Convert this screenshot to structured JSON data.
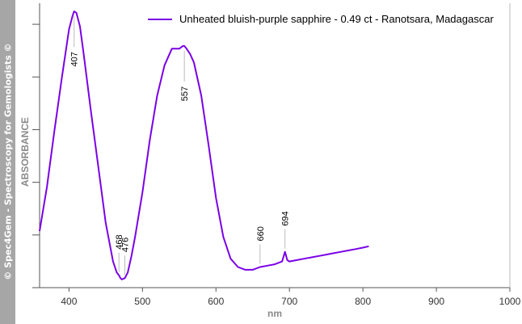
{
  "sidebar": {
    "watermark": "© Spec4Gem - Spectroscopy for Gemologists ©"
  },
  "chart_data": {
    "type": "line",
    "xlabel": "nm",
    "ylabel": "ABSORBANCE",
    "xlim": [
      360,
      1000
    ],
    "xticks": [
      400,
      500,
      600,
      700,
      800,
      900,
      1000
    ],
    "ylim": [
      0,
      1
    ],
    "yticks_count": 6,
    "grid": false,
    "legend": "top-right",
    "series": [
      {
        "name": "Unheated bluish-purple sapphire - 0.49 ct - Ranotsara, Madagascar",
        "color": "#7a00e6",
        "x": [
          360,
          370,
          380,
          390,
          400,
          405,
          407,
          410,
          415,
          420,
          430,
          440,
          450,
          460,
          465,
          468,
          470,
          472,
          476,
          480,
          485,
          490,
          500,
          510,
          520,
          530,
          540,
          550,
          555,
          557,
          560,
          565,
          570,
          580,
          590,
          600,
          610,
          620,
          630,
          640,
          650,
          660,
          670,
          680,
          690,
          694,
          697,
          700,
          710,
          720,
          730,
          740,
          750,
          760,
          770,
          780,
          790,
          800,
          808
        ],
        "y": [
          0.19,
          0.35,
          0.55,
          0.74,
          0.92,
          0.97,
          0.985,
          0.98,
          0.93,
          0.83,
          0.62,
          0.42,
          0.22,
          0.08,
          0.04,
          0.03,
          0.02,
          0.015,
          0.02,
          0.04,
          0.1,
          0.17,
          0.33,
          0.52,
          0.68,
          0.79,
          0.85,
          0.85,
          0.86,
          0.86,
          0.85,
          0.83,
          0.8,
          0.68,
          0.5,
          0.31,
          0.17,
          0.09,
          0.06,
          0.05,
          0.05,
          0.06,
          0.065,
          0.07,
          0.08,
          0.115,
          0.085,
          0.08,
          0.085,
          0.09,
          0.095,
          0.1,
          0.105,
          0.11,
          0.115,
          0.12,
          0.125,
          0.13,
          0.135
        ]
      }
    ],
    "annotations": [
      {
        "x": 407,
        "label": "407"
      },
      {
        "x": 468,
        "label": "468"
      },
      {
        "x": 476,
        "label": "476"
      },
      {
        "x": 557,
        "label": "557"
      },
      {
        "x": 660,
        "label": "660"
      },
      {
        "x": 694,
        "label": "694"
      }
    ]
  }
}
